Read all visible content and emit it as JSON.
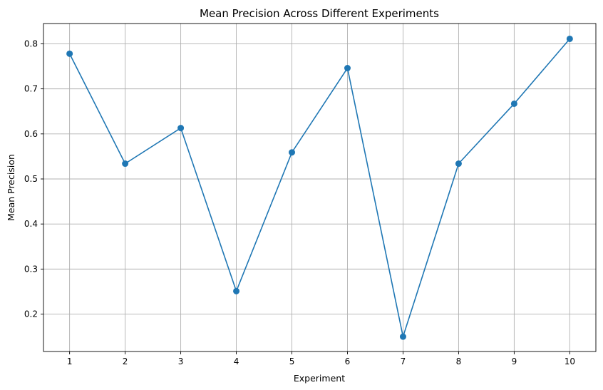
{
  "chart_data": {
    "type": "line",
    "title": "Mean Precision Across Different Experiments",
    "xlabel": "Experiment",
    "ylabel": "Mean Precision",
    "x": [
      1,
      2,
      3,
      4,
      5,
      6,
      7,
      8,
      9,
      10
    ],
    "series": [
      {
        "values": [
          0.778,
          0.534,
          0.613,
          0.251,
          0.559,
          0.746,
          0.15,
          0.534,
          0.667,
          0.811
        ]
      }
    ],
    "xlim": [
      0.53,
      10.47
    ],
    "ylim": [
      0.117,
      0.845
    ],
    "xticks": [
      1,
      2,
      3,
      4,
      5,
      6,
      7,
      8,
      9,
      10
    ],
    "yticks": [
      0.2,
      0.3,
      0.4,
      0.5,
      0.6,
      0.7,
      0.8
    ],
    "ytick_labels": [
      "0.2",
      "0.3",
      "0.4",
      "0.5",
      "0.6",
      "0.7",
      "0.8"
    ],
    "grid": true,
    "marker": "circle",
    "color": "#1f77b4"
  }
}
